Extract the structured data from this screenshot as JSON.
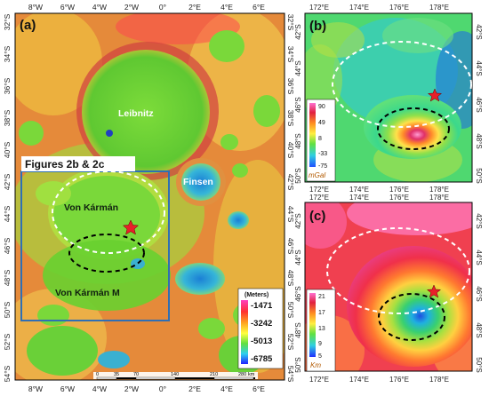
{
  "panel_a": {
    "label": "(a)",
    "x_ticks": [
      "8°W",
      "6°W",
      "4°W",
      "2°W",
      "0°",
      "2°E",
      "4°E",
      "6°E"
    ],
    "y_ticks": [
      "32°S",
      "34°S",
      "36°S",
      "38°S",
      "40°S",
      "42°S",
      "44°S",
      "46°S",
      "48°S",
      "50°S",
      "52°S",
      "54°S"
    ],
    "features": {
      "leibnitz": "Leibnitz",
      "finsen": "Finsen",
      "von_karman": "Von Kármán",
      "von_karman_m": "Von Kármán M"
    },
    "inset_label": "Figures 2b & 2c",
    "legend": {
      "unit": "(Meters)",
      "values": [
        "-1471",
        "-3242",
        "-5013",
        "-6785"
      ]
    },
    "scalebar": {
      "labels": [
        "0",
        "35",
        "70",
        "140",
        "210",
        "280"
      ],
      "unit": "km"
    }
  },
  "panel_b": {
    "label": "(b)",
    "x_ticks": [
      "172°E",
      "174°E",
      "176°E",
      "178°E"
    ],
    "y_ticks": [
      "42°S",
      "44°S",
      "46°S",
      "48°S",
      "50°S"
    ],
    "legend": {
      "values": [
        "90",
        "49",
        "8",
        "-33",
        "-75"
      ],
      "unit": "mGal"
    }
  },
  "panel_c": {
    "label": "(c)",
    "x_ticks": [
      "172°E",
      "174°E",
      "176°E",
      "178°E"
    ],
    "y_ticks": [
      "42°S",
      "44°S",
      "46°S",
      "48°S",
      "50°S"
    ],
    "legend": {
      "values": [
        "21",
        "17",
        "13",
        "9",
        "5"
      ],
      "unit": "Km"
    }
  },
  "colors": {
    "frame": "#000000",
    "inset_box": "#2f6fb5",
    "star": "#e8202a",
    "dashed_white": "#ffffff",
    "dashed_black": "#000000"
  }
}
